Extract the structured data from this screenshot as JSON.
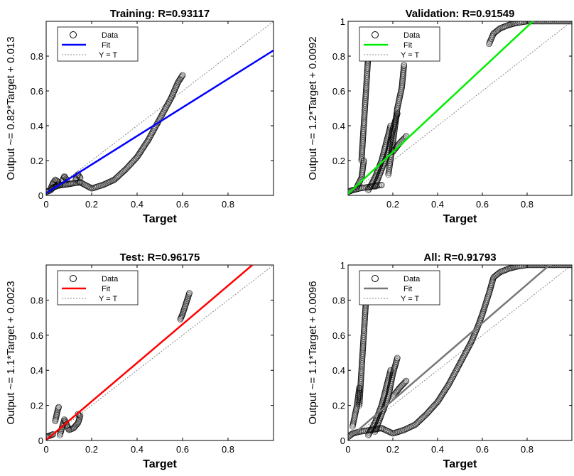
{
  "chart_data": [
    {
      "type": "scatter",
      "title": "Training: R=0.93117",
      "xlabel": "Target",
      "ylabel": "Output ~= 0.82*Target + 0.013",
      "xlim": [
        0,
        1
      ],
      "ylim": [
        0,
        1
      ],
      "xticks": [
        "0",
        "0.2",
        "0.4",
        "0.6",
        "0.8"
      ],
      "yticks": [
        "0",
        "0.2",
        "0.4",
        "0.6",
        "0.8"
      ],
      "legend": [
        "Data",
        "Fit",
        "Y = T"
      ],
      "legend_position": "top-left",
      "fit": {
        "slope": 0.82,
        "intercept": 0.013,
        "color": "#0000ff"
      },
      "series": [
        {
          "name": "Data",
          "segments": [
            [
              [
                0,
                0.02
              ],
              [
                0.01,
                0.025
              ],
              [
                0.02,
                0.03
              ],
              [
                0.03,
                0.045
              ],
              [
                0.04,
                0.05
              ],
              [
                0.05,
                0.055
              ],
              [
                0.07,
                0.06
              ],
              [
                0.1,
                0.065
              ],
              [
                0.12,
                0.07
              ],
              [
                0.15,
                0.075
              ]
            ],
            [
              [
                0.02,
                0.04
              ],
              [
                0.03,
                0.07
              ],
              [
                0.04,
                0.09
              ],
              [
                0.05,
                0.08
              ],
              [
                0.06,
                0.06
              ]
            ],
            [
              [
                0.07,
                0.08
              ],
              [
                0.08,
                0.11
              ],
              [
                0.09,
                0.09
              ]
            ],
            [
              [
                0.13,
                0.09
              ],
              [
                0.14,
                0.12
              ],
              [
                0.15,
                0.1
              ]
            ],
            [
              [
                0.15,
                0.075
              ],
              [
                0.2,
                0.04
              ],
              [
                0.25,
                0.06
              ],
              [
                0.3,
                0.09
              ],
              [
                0.35,
                0.15
              ],
              [
                0.4,
                0.22
              ],
              [
                0.45,
                0.32
              ],
              [
                0.5,
                0.44
              ],
              [
                0.55,
                0.56
              ],
              [
                0.58,
                0.65
              ],
              [
                0.6,
                0.69
              ]
            ]
          ]
        }
      ]
    },
    {
      "type": "scatter",
      "title": "Validation: R=0.91549",
      "xlabel": "Target",
      "ylabel": "Output ~= 1.2*Target + 0.0092",
      "xlim": [
        0,
        1
      ],
      "ylim": [
        0,
        1
      ],
      "xticks": [
        "0.2",
        "0.4",
        "0.6",
        "0.8"
      ],
      "yticks": [
        "0.2",
        "0.4",
        "0.6",
        "0.8",
        "1"
      ],
      "legend": [
        "Data",
        "Fit",
        "Y = T"
      ],
      "legend_position": "top-left",
      "fit": {
        "slope": 1.2,
        "intercept": 0.0092,
        "color": "#00ee00"
      },
      "series": [
        {
          "name": "Data",
          "segments": [
            [
              [
                0.0,
                0.02
              ],
              [
                0.02,
                0.03
              ],
              [
                0.05,
                0.04
              ],
              [
                0.1,
                0.05
              ],
              [
                0.15,
                0.06
              ]
            ],
            [
              [
                0.04,
                0.05
              ],
              [
                0.06,
                0.1
              ],
              [
                0.07,
                0.2
              ]
            ],
            [
              [
                0.06,
                0.2
              ],
              [
                0.07,
                0.4
              ],
              [
                0.08,
                0.6
              ],
              [
                0.09,
                0.8
              ],
              [
                0.095,
                0.87
              ]
            ],
            [
              [
                0.09,
                0.03
              ],
              [
                0.12,
                0.1
              ],
              [
                0.15,
                0.2
              ],
              [
                0.17,
                0.3
              ],
              [
                0.19,
                0.4
              ]
            ],
            [
              [
                0.12,
                0.05
              ],
              [
                0.15,
                0.15
              ],
              [
                0.18,
                0.25
              ],
              [
                0.2,
                0.38
              ],
              [
                0.22,
                0.47
              ]
            ],
            [
              [
                0.18,
                0.12
              ],
              [
                0.2,
                0.3
              ],
              [
                0.22,
                0.5
              ],
              [
                0.24,
                0.62
              ],
              [
                0.25,
                0.75
              ]
            ],
            [
              [
                0.2,
                0.25
              ],
              [
                0.23,
                0.3
              ],
              [
                0.26,
                0.34
              ]
            ],
            [
              [
                0.63,
                0.87
              ],
              [
                0.65,
                0.93
              ],
              [
                0.68,
                0.96
              ],
              [
                0.72,
                0.98
              ],
              [
                0.75,
                0.99
              ],
              [
                0.8,
                1.0
              ],
              [
                0.9,
                1.0
              ],
              [
                1.0,
                1.0
              ]
            ]
          ]
        }
      ]
    },
    {
      "type": "scatter",
      "title": "Test: R=0.96175",
      "xlabel": "Target",
      "ylabel": "Output ~= 1.1*Target + 0.0023",
      "xlim": [
        0,
        1
      ],
      "ylim": [
        0,
        1
      ],
      "xticks": [
        "0",
        "0.2",
        "0.4",
        "0.6",
        "0.8"
      ],
      "yticks": [
        "0",
        "0.2",
        "0.4",
        "0.6",
        "0.8"
      ],
      "legend": [
        "Data",
        "Fit",
        "Y = T"
      ],
      "legend_position": "top-left",
      "fit": {
        "slope": 1.1,
        "intercept": 0.0023,
        "color": "#ff0000"
      },
      "series": [
        {
          "name": "Data",
          "segments": [
            [
              [
                0.0,
                0.02
              ],
              [
                0.01,
                0.025
              ],
              [
                0.02,
                0.03
              ],
              [
                0.03,
                0.035
              ]
            ],
            [
              [
                0.04,
                0.11
              ],
              [
                0.045,
                0.14
              ],
              [
                0.05,
                0.17
              ],
              [
                0.055,
                0.19
              ]
            ],
            [
              [
                0.06,
                0.03
              ],
              [
                0.08,
                0.12
              ],
              [
                0.1,
                0.06
              ],
              [
                0.12,
                0.07
              ],
              [
                0.14,
                0.1
              ],
              [
                0.15,
                0.14
              ],
              [
                0.14,
                0.15
              ]
            ],
            [
              [
                0.59,
                0.69
              ],
              [
                0.6,
                0.72
              ],
              [
                0.61,
                0.76
              ],
              [
                0.62,
                0.8
              ],
              [
                0.63,
                0.84
              ]
            ]
          ]
        }
      ]
    },
    {
      "type": "scatter",
      "title": "All: R=0.91793",
      "xlabel": "Target",
      "ylabel": "Output ~= 1.1*Target + 0.0096",
      "xlim": [
        0,
        1
      ],
      "ylim": [
        0,
        1
      ],
      "xticks": [
        "0",
        "0.2",
        "0.4",
        "0.6",
        "0.8"
      ],
      "yticks": [
        "0",
        "0.2",
        "0.4",
        "0.6",
        "0.8",
        "1"
      ],
      "legend": [
        "Data",
        "Fit",
        "Y = T"
      ],
      "legend_position": "top-left",
      "fit": {
        "slope": 1.1,
        "intercept": 0.0096,
        "color": "#777777"
      },
      "series": [
        {
          "name": "Data",
          "segments": [
            [
              [
                0.0,
                0.02
              ],
              [
                0.02,
                0.04
              ],
              [
                0.05,
                0.05
              ],
              [
                0.1,
                0.06
              ],
              [
                0.15,
                0.07
              ]
            ],
            [
              [
                0.02,
                0.08
              ],
              [
                0.04,
                0.2
              ],
              [
                0.05,
                0.3
              ]
            ],
            [
              [
                0.05,
                0.2
              ],
              [
                0.06,
                0.4
              ],
              [
                0.07,
                0.6
              ],
              [
                0.08,
                0.8
              ],
              [
                0.09,
                0.87
              ]
            ],
            [
              [
                0.09,
                0.03
              ],
              [
                0.12,
                0.1
              ],
              [
                0.15,
                0.2
              ],
              [
                0.17,
                0.3
              ],
              [
                0.19,
                0.4
              ]
            ],
            [
              [
                0.12,
                0.05
              ],
              [
                0.15,
                0.15
              ],
              [
                0.18,
                0.25
              ],
              [
                0.2,
                0.38
              ],
              [
                0.22,
                0.47
              ]
            ],
            [
              [
                0.2,
                0.25
              ],
              [
                0.23,
                0.3
              ],
              [
                0.26,
                0.34
              ]
            ],
            [
              [
                0.15,
                0.07
              ],
              [
                0.2,
                0.04
              ],
              [
                0.25,
                0.06
              ],
              [
                0.3,
                0.09
              ],
              [
                0.35,
                0.15
              ],
              [
                0.4,
                0.22
              ],
              [
                0.45,
                0.32
              ],
              [
                0.5,
                0.44
              ],
              [
                0.55,
                0.56
              ],
              [
                0.58,
                0.65
              ],
              [
                0.6,
                0.72
              ],
              [
                0.63,
                0.84
              ],
              [
                0.65,
                0.93
              ],
              [
                0.68,
                0.96
              ],
              [
                0.72,
                0.98
              ],
              [
                0.75,
                0.99
              ],
              [
                0.8,
                1.0
              ],
              [
                0.9,
                1.0
              ],
              [
                1.0,
                1.0
              ]
            ]
          ]
        }
      ]
    }
  ]
}
